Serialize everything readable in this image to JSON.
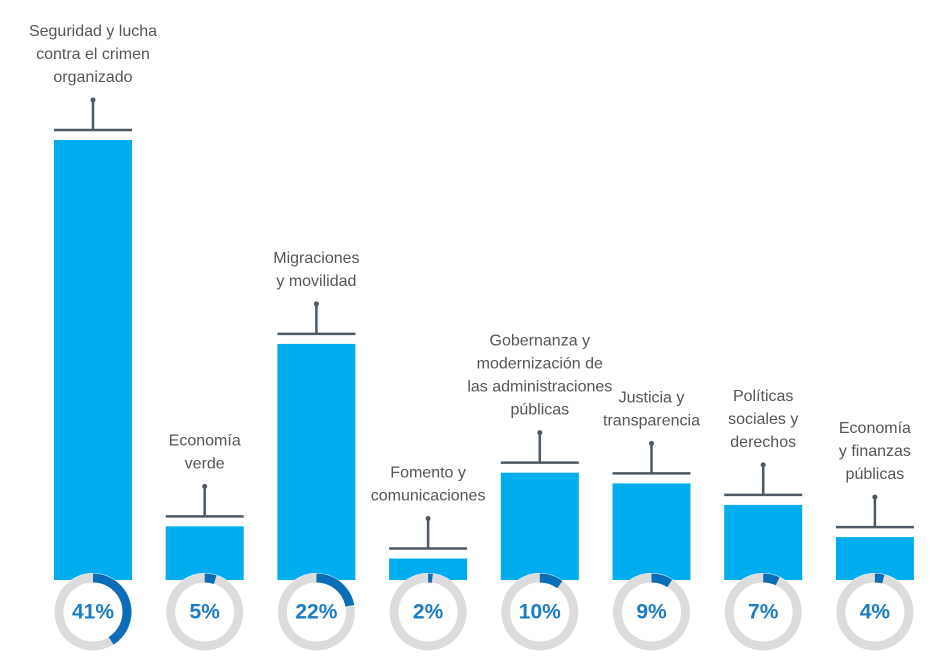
{
  "chart_data": {
    "type": "bar",
    "categories": [
      "Seguridad y lucha\ncontra el crimen\norganizado",
      "Economía\nverde",
      "Migraciones\ny movilidad",
      "Fomento y\ncomunicaciones",
      "Gobernanza y\nmodernización de\nlas administraciones\npúblicas",
      "Justicia y\ntransparencia",
      "Políticas\nsociales y\nderechos",
      "Economía\ny finanzas\npúblicas"
    ],
    "values": [
      41,
      5,
      22,
      2,
      10,
      9,
      7,
      4
    ],
    "value_labels": [
      "41%",
      "5%",
      "22%",
      "2%",
      "10%",
      "9%",
      "7%",
      "4%"
    ],
    "color": "#00aeef"
  }
}
